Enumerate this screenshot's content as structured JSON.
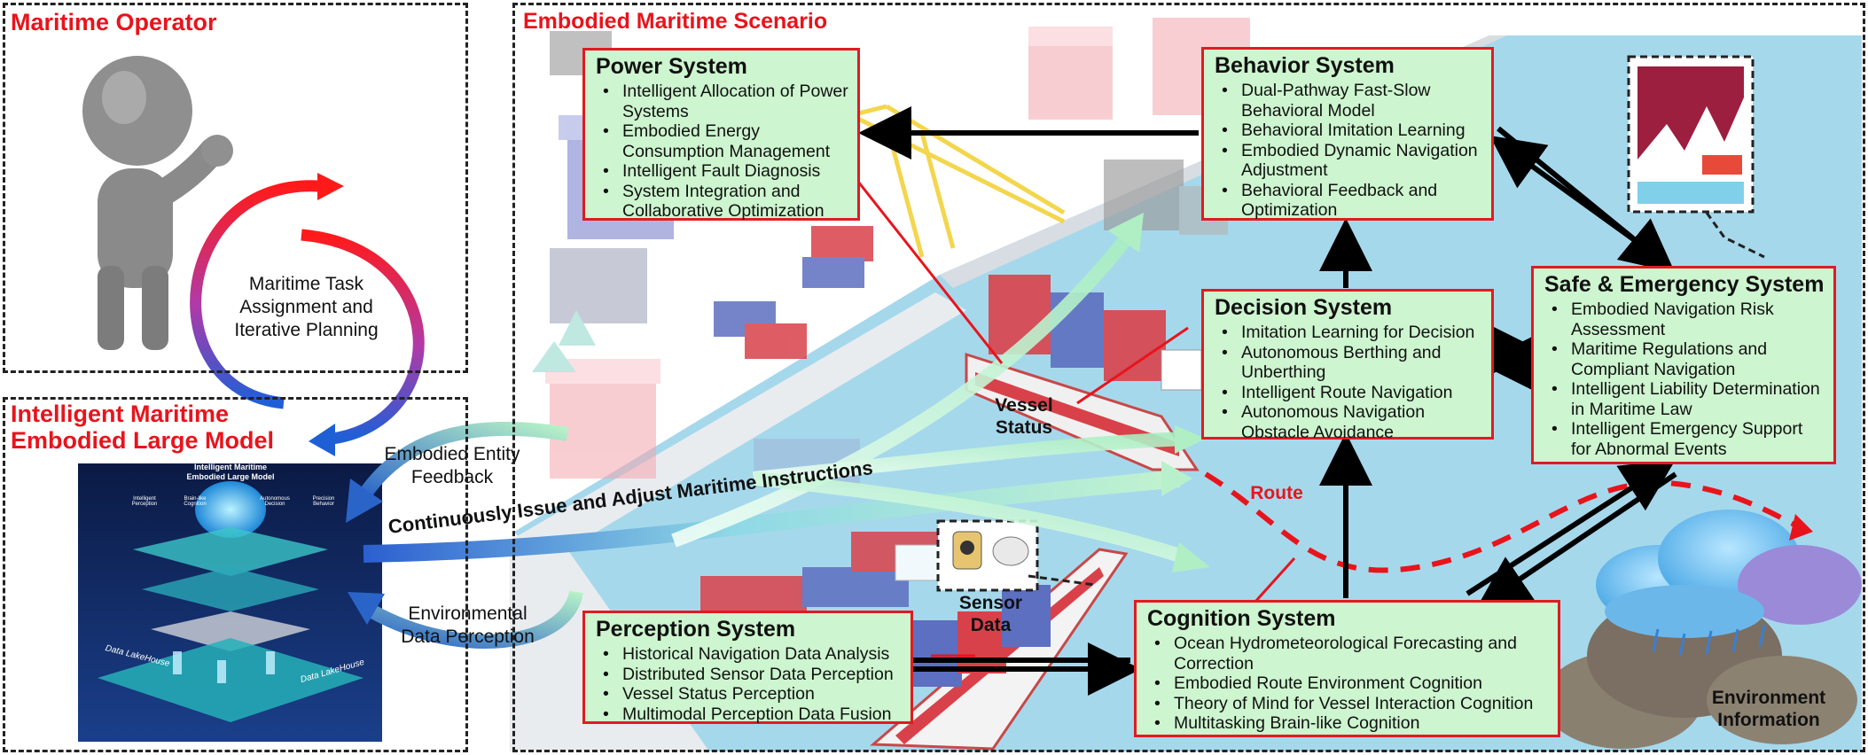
{
  "operator": {
    "title": "Maritime Operator"
  },
  "loop_label": "Maritime Task Assignment and Iterative Planning",
  "model": {
    "title": "Intelligent Maritime Embodied Large Model",
    "image_title": "Intelligent Maritime Embodied Large Model",
    "image_modules": [
      "Intelligent Perception",
      "Brain-like Cognition",
      "Autonomous Decision",
      "Precision Behavior"
    ],
    "image_lakehouse": "Data LakeHouse"
  },
  "scenario": {
    "title": "Embodied Maritime Scenario"
  },
  "arrows": {
    "feedback": "Embodied Entity Feedback",
    "instructions": "Continuously Issue and Adjust Maritime Instructions",
    "perception": "Environmental Data Perception"
  },
  "scene_labels": {
    "vessel_status": "Vessel Status",
    "sensor_data": "Sensor Data",
    "route": "Route",
    "environment": "Environment Information"
  },
  "systems": {
    "power": {
      "title": "Power System",
      "items": [
        "Intelligent Allocation of Power Systems",
        "Embodied Energy Consumption Management",
        "Intelligent Fault Diagnosis",
        "System Integration and Collaborative Optimization"
      ]
    },
    "behavior": {
      "title": "Behavior System",
      "items": [
        "Dual-Pathway Fast-Slow Behavioral Model",
        "Behavioral Imitation Learning",
        "Embodied Dynamic Navigation Adjustment",
        "Behavioral Feedback and Optimization"
      ]
    },
    "decision": {
      "title": "Decision System",
      "items": [
        "Imitation Learning for Decision",
        "Autonomous Berthing and Unberthing",
        "Intelligent Route Navigation",
        "Autonomous Navigation Obstacle Avoidance"
      ]
    },
    "safe": {
      "title": "Safe & Emergency System",
      "items": [
        "Embodied Navigation Risk Assessment",
        "Maritime Regulations and Compliant Navigation",
        "Intelligent Liability Determination in Maritime Law",
        "Intelligent Emergency Support for Abnormal Events"
      ]
    },
    "perception": {
      "title": "Perception System",
      "items": [
        "Historical Navigation Data Analysis",
        "Distributed Sensor Data Perception",
        "Vessel Status Perception",
        "Multimodal Perception Data Fusion"
      ]
    },
    "cognition": {
      "title": "Cognition System",
      "items": [
        "Ocean Hydrometeorological Forecasting and Correction",
        "Embodied Route Environment Cognition",
        "Theory of Mind for Vessel Interaction Cognition",
        "Multitasking Brain-like Cognition"
      ]
    }
  },
  "colors": {
    "accent_red": "#e8141c",
    "box_fill": "#cdf5cf",
    "sea": "#a6d8ec",
    "arrow_green": "#b8f0c8"
  }
}
